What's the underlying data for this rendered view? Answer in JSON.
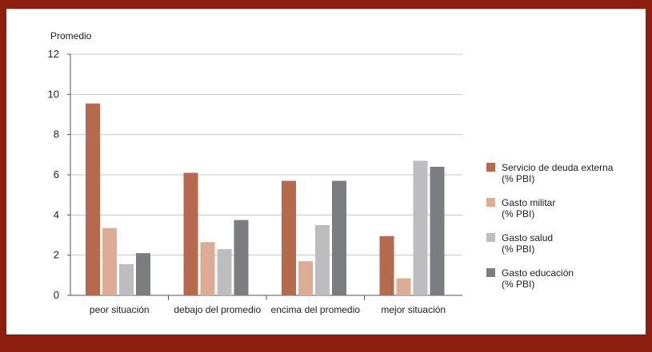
{
  "chart_data": {
    "type": "bar",
    "title": "",
    "ylabel": "Promedio",
    "xlabel": "",
    "ylim": [
      0,
      12
    ],
    "yticks": [
      0,
      2,
      4,
      6,
      8,
      10,
      12
    ],
    "grid": true,
    "legend_position": "right",
    "categories": [
      "peor situación",
      "debajo del promedio",
      "encima del promedio",
      "mejor situación"
    ],
    "series": [
      {
        "name": "Servicio de deuda externa",
        "unit": "(% PBI)",
        "color": "#b5694d",
        "values": [
          9.55,
          6.1,
          5.7,
          2.95
        ]
      },
      {
        "name": "Gasto militar",
        "unit": "(% PBI)",
        "color": "#dcac94",
        "values": [
          3.35,
          2.65,
          1.7,
          0.85
        ]
      },
      {
        "name": "Gasto salud",
        "unit": "(% PBI)",
        "color": "#bdbdbf",
        "values": [
          1.55,
          2.3,
          3.5,
          6.7
        ]
      },
      {
        "name": "Gasto educación",
        "unit": "(% PBI)",
        "color": "#7c7d80",
        "values": [
          2.1,
          3.75,
          5.7,
          6.4
        ]
      }
    ]
  },
  "colors": {
    "frame": "#8e1e0e",
    "grid": "#c8c8c8",
    "axis": "#555555",
    "text": "#222222"
  }
}
